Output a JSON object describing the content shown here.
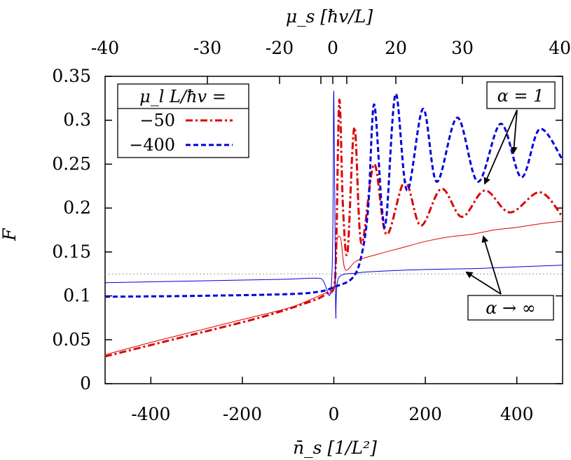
{
  "chart_data": {
    "type": "line",
    "title": "",
    "xlabel": "n̄_s [1/L²]",
    "ylabel": "F",
    "top_xlabel": "μ_s [ħv/L]",
    "xlim": [
      -500,
      500
    ],
    "ylim": [
      0,
      0.35
    ],
    "x_ticks": [
      -400,
      -200,
      0,
      200,
      400
    ],
    "x_tick_labels": [
      "-400",
      "-200",
      "0",
      "200",
      "400"
    ],
    "y_ticks": [
      0,
      0.05,
      0.1,
      0.15,
      0.2,
      0.25,
      0.3,
      0.35
    ],
    "y_tick_labels": [
      "0",
      "0.05",
      "0.1",
      "0.15",
      "0.2",
      "0.25",
      "0.3",
      "0.35"
    ],
    "top_ticks": [
      -40,
      -30,
      -20,
      0,
      20,
      30,
      40
    ],
    "top_tick_labels": [
      "-40",
      "-30",
      "-20",
      "0",
      "20",
      "30",
      "40"
    ],
    "reference_line": {
      "y": 0.125,
      "style": "dotted",
      "color": "#999999"
    },
    "legend": {
      "title": "μ_l L/ħv =",
      "entries": [
        {
          "label": "−50",
          "color": "#dd0000",
          "style": "dash-dot"
        },
        {
          "label": "−400",
          "color": "#0000dd",
          "style": "dashed"
        }
      ]
    },
    "annotations": [
      {
        "text": "α = 1",
        "targets": [
          "alpha1-blue",
          "alpha1-red"
        ]
      },
      {
        "text": "α → ∞",
        "targets": [
          "alphainf-red",
          "alphainf-blue"
        ]
      }
    ],
    "series": [
      {
        "name": "alpha=1, mu_l L/hv=-50",
        "color": "#dd0000",
        "style": "dash-dot",
        "width": 3,
        "points": [
          [
            -500,
            0.031
          ],
          [
            -400,
            0.044
          ],
          [
            -300,
            0.057
          ],
          [
            -200,
            0.07
          ],
          [
            -150,
            0.077
          ],
          [
            -100,
            0.085
          ],
          [
            -60,
            0.092
          ],
          [
            -30,
            0.098
          ],
          [
            -10,
            0.105
          ],
          [
            0,
            0.11
          ],
          [
            5,
            0.15
          ],
          [
            12,
            0.323
          ],
          [
            20,
            0.2
          ],
          [
            30,
            0.15
          ],
          [
            45,
            0.292
          ],
          [
            60,
            0.16
          ],
          [
            88,
            0.25
          ],
          [
            115,
            0.17
          ],
          [
            155,
            0.23
          ],
          [
            190,
            0.18
          ],
          [
            235,
            0.222
          ],
          [
            280,
            0.19
          ],
          [
            330,
            0.22
          ],
          [
            385,
            0.195
          ],
          [
            450,
            0.218
          ],
          [
            500,
            0.19
          ]
        ]
      },
      {
        "name": "alpha=1, mu_l L/hv=-400",
        "color": "#0000dd",
        "style": "dashed",
        "width": 3,
        "points": [
          [
            -500,
            0.099
          ],
          [
            -300,
            0.1
          ],
          [
            -100,
            0.102
          ],
          [
            -30,
            0.105
          ],
          [
            0,
            0.11
          ],
          [
            40,
            0.12
          ],
          [
            60,
            0.145
          ],
          [
            75,
            0.2
          ],
          [
            88,
            0.318
          ],
          [
            105,
            0.2
          ],
          [
            115,
            0.19
          ],
          [
            135,
            0.33
          ],
          [
            160,
            0.22
          ],
          [
            195,
            0.313
          ],
          [
            225,
            0.23
          ],
          [
            270,
            0.303
          ],
          [
            315,
            0.23
          ],
          [
            365,
            0.296
          ],
          [
            410,
            0.235
          ],
          [
            450,
            0.29
          ],
          [
            500,
            0.255
          ]
        ]
      },
      {
        "name": "alpha->inf, mu_l L/hv=-50",
        "color": "#dd0000",
        "style": "solid",
        "width": 1,
        "points": [
          [
            -500,
            0.033
          ],
          [
            -400,
            0.047
          ],
          [
            -300,
            0.06
          ],
          [
            -200,
            0.073
          ],
          [
            -100,
            0.086
          ],
          [
            -50,
            0.096
          ],
          [
            -20,
            0.103
          ],
          [
            0,
            0.108
          ],
          [
            6,
            0.16
          ],
          [
            15,
            0.165
          ],
          [
            25,
            0.13
          ],
          [
            50,
            0.14
          ],
          [
            100,
            0.148
          ],
          [
            150,
            0.155
          ],
          [
            200,
            0.162
          ],
          [
            250,
            0.167
          ],
          [
            300,
            0.17
          ],
          [
            350,
            0.175
          ],
          [
            400,
            0.178
          ],
          [
            450,
            0.182
          ],
          [
            500,
            0.185
          ]
        ]
      },
      {
        "name": "alpha->inf, mu_l L/hv=-400",
        "color": "#0000dd",
        "style": "solid",
        "width": 1,
        "points": [
          [
            -500,
            0.115
          ],
          [
            -400,
            0.116
          ],
          [
            -300,
            0.117
          ],
          [
            -200,
            0.118
          ],
          [
            -100,
            0.119
          ],
          [
            -30,
            0.12
          ],
          [
            -5,
            0.115
          ],
          [
            0,
            0.333
          ],
          [
            4,
            0.085
          ],
          [
            10,
            0.12
          ],
          [
            50,
            0.126
          ],
          [
            100,
            0.128
          ],
          [
            200,
            0.13
          ],
          [
            300,
            0.131
          ],
          [
            400,
            0.133
          ],
          [
            500,
            0.135
          ]
        ]
      }
    ]
  }
}
